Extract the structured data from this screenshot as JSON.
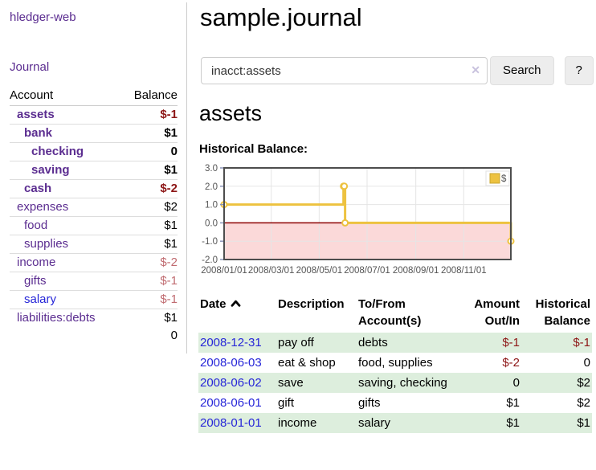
{
  "app": {
    "brand": "hledger-web"
  },
  "sidebar": {
    "journal_label": "Journal",
    "accounts_table": {
      "headers": {
        "account": "Account",
        "balance": "Balance"
      },
      "rows": [
        {
          "label": "assets",
          "depth": 1,
          "bold": true,
          "blue": false,
          "value": "$-1",
          "value_style": "neg-bold"
        },
        {
          "label": "bank",
          "depth": 2,
          "bold": true,
          "blue": false,
          "value": "$1",
          "value_style": "black-bold"
        },
        {
          "label": "checking",
          "depth": 3,
          "bold": true,
          "blue": false,
          "value": "0",
          "value_style": "black-bold"
        },
        {
          "label": "saving",
          "depth": 3,
          "bold": true,
          "blue": false,
          "value": "$1",
          "value_style": "black-bold"
        },
        {
          "label": "cash",
          "depth": 2,
          "bold": true,
          "blue": false,
          "value": "$-2",
          "value_style": "neg-bold"
        },
        {
          "label": "expenses",
          "depth": 1,
          "bold": false,
          "blue": false,
          "value": "$2",
          "value_style": "black"
        },
        {
          "label": "food",
          "depth": 2,
          "bold": false,
          "blue": false,
          "value": "$1",
          "value_style": "black"
        },
        {
          "label": "supplies",
          "depth": 2,
          "bold": false,
          "blue": false,
          "value": "$1",
          "value_style": "black"
        },
        {
          "label": "income",
          "depth": 1,
          "bold": false,
          "blue": false,
          "value": "$-2",
          "value_style": "neg-soft"
        },
        {
          "label": "gifts",
          "depth": 2,
          "bold": false,
          "blue": false,
          "value": "$-1",
          "value_style": "neg-soft"
        },
        {
          "label": "salary",
          "depth": 2,
          "bold": false,
          "blue": true,
          "value": "$-1",
          "value_style": "neg-soft"
        },
        {
          "label": "liabilities:debts",
          "depth": 1,
          "bold": false,
          "blue": false,
          "value": "$1",
          "value_style": "black"
        }
      ],
      "total": "0"
    }
  },
  "main": {
    "title": "sample.journal",
    "search": {
      "value": "inacct:assets",
      "clear_icon": "✕",
      "search_label": "Search",
      "help_label": "?"
    },
    "section_title": "assets",
    "chart_heading": "Historical Balance:",
    "register_table": {
      "headers": [
        "Date",
        "Description",
        "To/From Account(s)",
        "Amount Out/In",
        "Historical Balance"
      ],
      "rows": [
        {
          "date": "2008-12-31",
          "description": "pay off",
          "accounts": "debts",
          "amount": "$-1",
          "amount_negative": true,
          "balance": "$-1",
          "balance_negative": true
        },
        {
          "date": "2008-06-03",
          "description": "eat & shop",
          "accounts": "food, supplies",
          "amount": "$-2",
          "amount_negative": true,
          "balance": "0",
          "balance_negative": false
        },
        {
          "date": "2008-06-02",
          "description": "save",
          "accounts": "saving, checking",
          "amount": "0",
          "amount_negative": false,
          "balance": "$2",
          "balance_negative": false
        },
        {
          "date": "2008-06-01",
          "description": "gift",
          "accounts": "gifts",
          "amount": "$1",
          "amount_negative": false,
          "balance": "$2",
          "balance_negative": false
        },
        {
          "date": "2008-01-01",
          "description": "income",
          "accounts": "salary",
          "amount": "$1",
          "amount_negative": false,
          "balance": "$1",
          "balance_negative": false
        }
      ]
    }
  },
  "chart_data": {
    "type": "line",
    "title": "Historical Balance",
    "step": true,
    "ylim": [
      -2,
      3
    ],
    "xlim_days": [
      0,
      365
    ],
    "y_ticks": [
      3.0,
      2.0,
      1.0,
      0.0,
      -1.0,
      -2.0
    ],
    "x_ticks": [
      {
        "label": "2008/01/01",
        "day": 0
      },
      {
        "label": "2008/03/01",
        "day": 60
      },
      {
        "label": "2008/05/01",
        "day": 121
      },
      {
        "label": "2008/07/01",
        "day": 182
      },
      {
        "label": "2008/09/01",
        "day": 244
      },
      {
        "label": "2008/11/01",
        "day": 305
      }
    ],
    "series": [
      {
        "name": "$",
        "points": [
          {
            "date": "2008-01-01",
            "day": 0,
            "value": 1
          },
          {
            "date": "2008-06-01",
            "day": 152,
            "value": 2
          },
          {
            "date": "2008-06-02",
            "day": 153,
            "value": 2
          },
          {
            "date": "2008-06-03",
            "day": 154,
            "value": 0
          },
          {
            "date": "2008-12-31",
            "day": 365,
            "value": -1
          }
        ]
      }
    ],
    "legend": {
      "label": "$",
      "position": "top-right"
    },
    "grid": true,
    "colors": {
      "line": "#edc240",
      "marker_fill": "#ffffff",
      "negative_fill": "#fbd9d9",
      "zero_line": "#8b0000",
      "grid": "#e5e5e5",
      "border": "#4d4d4d"
    }
  },
  "colors": {
    "link_purple": "#5b2d90",
    "link_blue": "#2626d8",
    "negative_strong": "#8d1616",
    "negative_soft": "#c06b70",
    "row_green": "#ddeedd",
    "accent_gold": "#edc240"
  }
}
